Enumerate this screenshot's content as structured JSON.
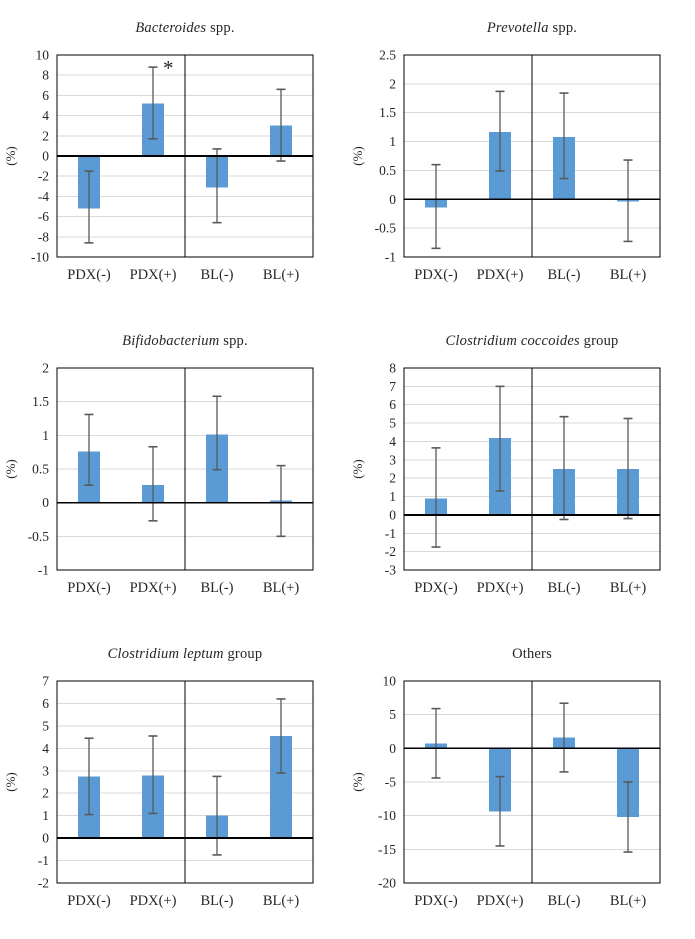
{
  "styles": {
    "bar_fill": "#5b9bd5",
    "error_stroke": "#595959",
    "grid_stroke": "#d9d9d9",
    "axis_stroke": "#000000",
    "text_color": "#262626"
  },
  "chart_data": [
    {
      "type": "bar",
      "title_italic": "Bacteroides",
      "title_rest": " spp.",
      "ylabel": "(%)",
      "categories": [
        "PDX(-)",
        "PDX(+)",
        "BL(-)",
        "BL(+)"
      ],
      "values": [
        -5.2,
        5.2,
        -3.1,
        3.0
      ],
      "error_low": [
        -8.6,
        1.7,
        -6.6,
        -0.5
      ],
      "error_high": [
        -1.5,
        8.8,
        0.7,
        6.6
      ],
      "ylim": [
        -10,
        10
      ],
      "ytick_step": 2,
      "grid": true,
      "annotation": {
        "bar_index": 1,
        "text": "*"
      }
    },
    {
      "type": "bar",
      "title_italic": "Prevotella",
      "title_rest": " spp.",
      "ylabel": "(%)",
      "categories": [
        "PDX(-)",
        "PDX(+)",
        "BL(-)",
        "BL(+)"
      ],
      "values": [
        -0.14,
        1.17,
        1.08,
        -0.04
      ],
      "error_low": [
        -0.85,
        0.49,
        0.36,
        -0.73
      ],
      "error_high": [
        0.6,
        1.87,
        1.84,
        0.68
      ],
      "ylim": [
        -1,
        2.5
      ],
      "ytick_step": 0.5,
      "grid": true
    },
    {
      "type": "bar",
      "title_italic": "Bifidobacterium",
      "title_rest": " spp.",
      "ylabel": "(%)",
      "categories": [
        "PDX(-)",
        "PDX(+)",
        "BL(-)",
        "BL(+)"
      ],
      "values": [
        0.76,
        0.26,
        1.01,
        0.03
      ],
      "error_low": [
        0.26,
        -0.27,
        0.49,
        -0.5
      ],
      "error_high": [
        1.31,
        0.83,
        1.58,
        0.55
      ],
      "ylim": [
        -1,
        2
      ],
      "ytick_step": 0.5,
      "grid": true
    },
    {
      "type": "bar",
      "title_italic": "Clostridium coccoides",
      "title_rest": " group",
      "ylabel": "(%)",
      "categories": [
        "PDX(-)",
        "PDX(+)",
        "BL(-)",
        "BL(+)"
      ],
      "values": [
        0.9,
        4.2,
        2.5,
        2.5
      ],
      "error_low": [
        -1.75,
        1.3,
        -0.25,
        -0.2
      ],
      "error_high": [
        3.65,
        7.0,
        5.35,
        5.25
      ],
      "ylim": [
        -3,
        8
      ],
      "ytick_step": 1,
      "grid": true
    },
    {
      "type": "bar",
      "title_italic": "Clostridium leptum",
      "title_rest": " group",
      "ylabel": "(%)",
      "categories": [
        "PDX(-)",
        "PDX(+)",
        "BL(-)",
        "BL(+)"
      ],
      "values": [
        2.75,
        2.8,
        1.0,
        4.55
      ],
      "error_low": [
        1.05,
        1.1,
        -0.75,
        2.9
      ],
      "error_high": [
        4.45,
        4.55,
        2.75,
        6.2
      ],
      "ylim": [
        -2,
        7
      ],
      "ytick_step": 1,
      "grid": true
    },
    {
      "type": "bar",
      "title_italic": "",
      "title_rest": "Others",
      "ylabel": "(%)",
      "categories": [
        "PDX(-)",
        "PDX(+)",
        "BL(-)",
        "BL(+)"
      ],
      "values": [
        0.7,
        -9.4,
        1.6,
        -10.2
      ],
      "error_low": [
        -4.4,
        -14.5,
        -3.5,
        -15.4
      ],
      "error_high": [
        5.9,
        -4.2,
        6.7,
        -5.0
      ],
      "ylim": [
        -20,
        10
      ],
      "ytick_step": 5,
      "grid": true
    }
  ]
}
